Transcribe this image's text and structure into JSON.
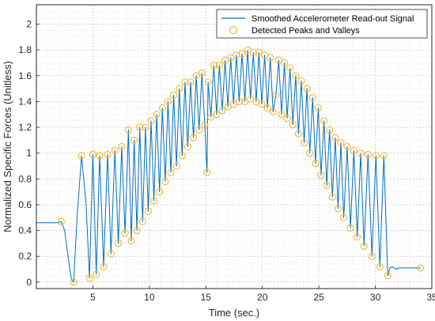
{
  "chart_data": {
    "type": "line",
    "xlabel": "Time (sec.)",
    "ylabel": "Normalized Specific Forces (Unitless)",
    "xlim": [
      0,
      35
    ],
    "ylim": [
      -0.05,
      2.15
    ],
    "xticks": [
      5,
      10,
      15,
      20,
      25,
      30,
      35
    ],
    "yticks": [
      0,
      0.2,
      0.4,
      0.6,
      0.8,
      1,
      1.2,
      1.4,
      1.6,
      1.8,
      2
    ],
    "ytick_labels": [
      "0",
      "0.2",
      "0.4",
      "0.6",
      "0.8",
      "1",
      "1.2",
      "1.4",
      "1.6",
      "1.8",
      "2"
    ],
    "grid": "major and minor",
    "legend_position": "top-right",
    "series": [
      {
        "name": "Smoothed Accelerometer Read-out Signal",
        "style": "line",
        "color": "#0072BD",
        "x": [
          0,
          1.6,
          1.9,
          2.2,
          2.5,
          2.8,
          3.1,
          3.3,
          3.6,
          4.0,
          4.4,
          4.7,
          5.0,
          5.3,
          5.6,
          5.95,
          6.3,
          6.6,
          6.95,
          7.25,
          7.55,
          7.85,
          8.15,
          8.4,
          8.65,
          8.9,
          9.15,
          9.4,
          9.65,
          9.9,
          10.15,
          10.4,
          10.65,
          10.9,
          11.15,
          11.4,
          11.65,
          11.9,
          12.15,
          12.4,
          12.65,
          12.9,
          13.15,
          13.4,
          13.65,
          13.9,
          14.15,
          14.4,
          14.65,
          14.9,
          15.1,
          15.2,
          15.45,
          15.7,
          15.95,
          16.2,
          16.45,
          16.7,
          16.95,
          17.2,
          17.45,
          17.7,
          17.95,
          18.2,
          18.45,
          18.7,
          18.95,
          19.2,
          19.45,
          19.7,
          19.95,
          20.2,
          20.45,
          20.7,
          20.95,
          21.2,
          21.45,
          21.7,
          21.95,
          22.2,
          22.45,
          22.7,
          22.95,
          23.2,
          23.45,
          23.7,
          23.95,
          24.2,
          24.45,
          24.7,
          24.95,
          25.2,
          25.45,
          25.7,
          25.95,
          26.2,
          26.45,
          26.7,
          26.95,
          27.2,
          27.5,
          27.8,
          28.1,
          28.4,
          28.7,
          29.0,
          29.35,
          29.7,
          30.05,
          30.4,
          30.75,
          31.1,
          31.3,
          31.5,
          31.8,
          32.1,
          33.0,
          34.0
        ],
        "y": [
          0.46,
          0.46,
          0.46,
          0.47,
          0.4,
          0.2,
          0.02,
          0.0,
          0.5,
          0.98,
          0.6,
          0.03,
          0.99,
          0.06,
          0.98,
          0.12,
          0.99,
          0.22,
          1.02,
          0.3,
          1.05,
          0.38,
          1.18,
          0.32,
          1.1,
          0.4,
          1.2,
          0.47,
          1.2,
          0.55,
          1.25,
          0.63,
          1.3,
          0.7,
          1.35,
          0.78,
          1.4,
          0.85,
          1.45,
          0.9,
          1.5,
          0.98,
          1.55,
          1.05,
          1.55,
          1.12,
          1.6,
          1.18,
          1.62,
          1.22,
          0.85,
          1.55,
          1.28,
          1.68,
          1.3,
          1.68,
          1.33,
          1.72,
          1.36,
          1.74,
          1.38,
          1.76,
          1.4,
          1.77,
          1.4,
          1.8,
          1.42,
          1.78,
          1.4,
          1.78,
          1.38,
          1.76,
          1.35,
          1.74,
          1.32,
          1.45,
          1.72,
          1.3,
          1.7,
          1.27,
          1.66,
          1.22,
          1.6,
          1.15,
          1.56,
          1.08,
          1.5,
          1.0,
          1.43,
          0.92,
          1.35,
          0.83,
          1.25,
          0.75,
          1.18,
          0.66,
          1.12,
          0.57,
          1.08,
          0.5,
          1.05,
          0.42,
          1.02,
          0.35,
          1.0,
          0.28,
          0.99,
          0.2,
          0.98,
          0.12,
          0.98,
          0.05,
          0.11,
          0.12,
          0.1,
          0.11,
          0.11,
          0.11
        ]
      },
      {
        "name": "Detected Peaks and Valleys",
        "style": "markers",
        "color": "#EDB120",
        "x": [
          2.2,
          3.3,
          4.0,
          4.7,
          5.0,
          5.3,
          5.6,
          5.95,
          6.3,
          6.6,
          6.95,
          7.25,
          7.55,
          7.85,
          8.15,
          8.4,
          8.65,
          8.9,
          9.15,
          9.4,
          9.65,
          9.9,
          10.15,
          10.4,
          10.65,
          10.9,
          11.15,
          11.4,
          11.65,
          11.9,
          12.15,
          12.4,
          12.65,
          12.9,
          13.15,
          13.4,
          13.65,
          13.9,
          14.15,
          14.4,
          14.65,
          14.9,
          15.1,
          15.2,
          15.45,
          15.7,
          15.95,
          16.2,
          16.45,
          16.7,
          16.95,
          17.2,
          17.45,
          17.7,
          17.95,
          18.2,
          18.45,
          18.7,
          18.95,
          19.2,
          19.45,
          19.7,
          19.95,
          20.2,
          20.45,
          20.7,
          20.95,
          21.2,
          21.45,
          21.7,
          21.95,
          22.2,
          22.45,
          22.7,
          22.95,
          23.2,
          23.45,
          23.7,
          23.95,
          24.2,
          24.45,
          24.7,
          24.95,
          25.2,
          25.45,
          25.7,
          25.95,
          26.2,
          26.45,
          26.7,
          26.95,
          27.2,
          27.5,
          27.8,
          28.1,
          28.4,
          28.7,
          29.0,
          29.35,
          29.7,
          30.05,
          30.4,
          30.75,
          31.1,
          34.0
        ],
        "y": [
          0.47,
          0.0,
          0.98,
          0.03,
          0.99,
          0.06,
          0.98,
          0.12,
          0.99,
          0.22,
          1.02,
          0.3,
          1.05,
          0.38,
          1.18,
          0.32,
          1.1,
          0.4,
          1.2,
          0.47,
          1.2,
          0.55,
          1.25,
          0.63,
          1.3,
          0.7,
          1.35,
          0.78,
          1.4,
          0.85,
          1.45,
          0.9,
          1.5,
          0.98,
          1.55,
          1.05,
          1.55,
          1.12,
          1.6,
          1.18,
          1.62,
          1.22,
          0.85,
          1.55,
          1.28,
          1.68,
          1.3,
          1.68,
          1.33,
          1.72,
          1.36,
          1.74,
          1.38,
          1.76,
          1.4,
          1.77,
          1.4,
          1.8,
          1.42,
          1.78,
          1.4,
          1.78,
          1.38,
          1.76,
          1.35,
          1.74,
          1.32,
          1.45,
          1.72,
          1.3,
          1.7,
          1.27,
          1.66,
          1.22,
          1.6,
          1.15,
          1.56,
          1.08,
          1.5,
          1.0,
          1.43,
          0.92,
          1.35,
          0.83,
          1.25,
          0.75,
          1.18,
          0.66,
          1.12,
          0.57,
          1.08,
          0.5,
          1.05,
          0.42,
          1.02,
          0.35,
          1.0,
          0.28,
          0.99,
          0.2,
          0.98,
          0.12,
          0.98,
          0.05,
          0.11
        ]
      }
    ]
  }
}
